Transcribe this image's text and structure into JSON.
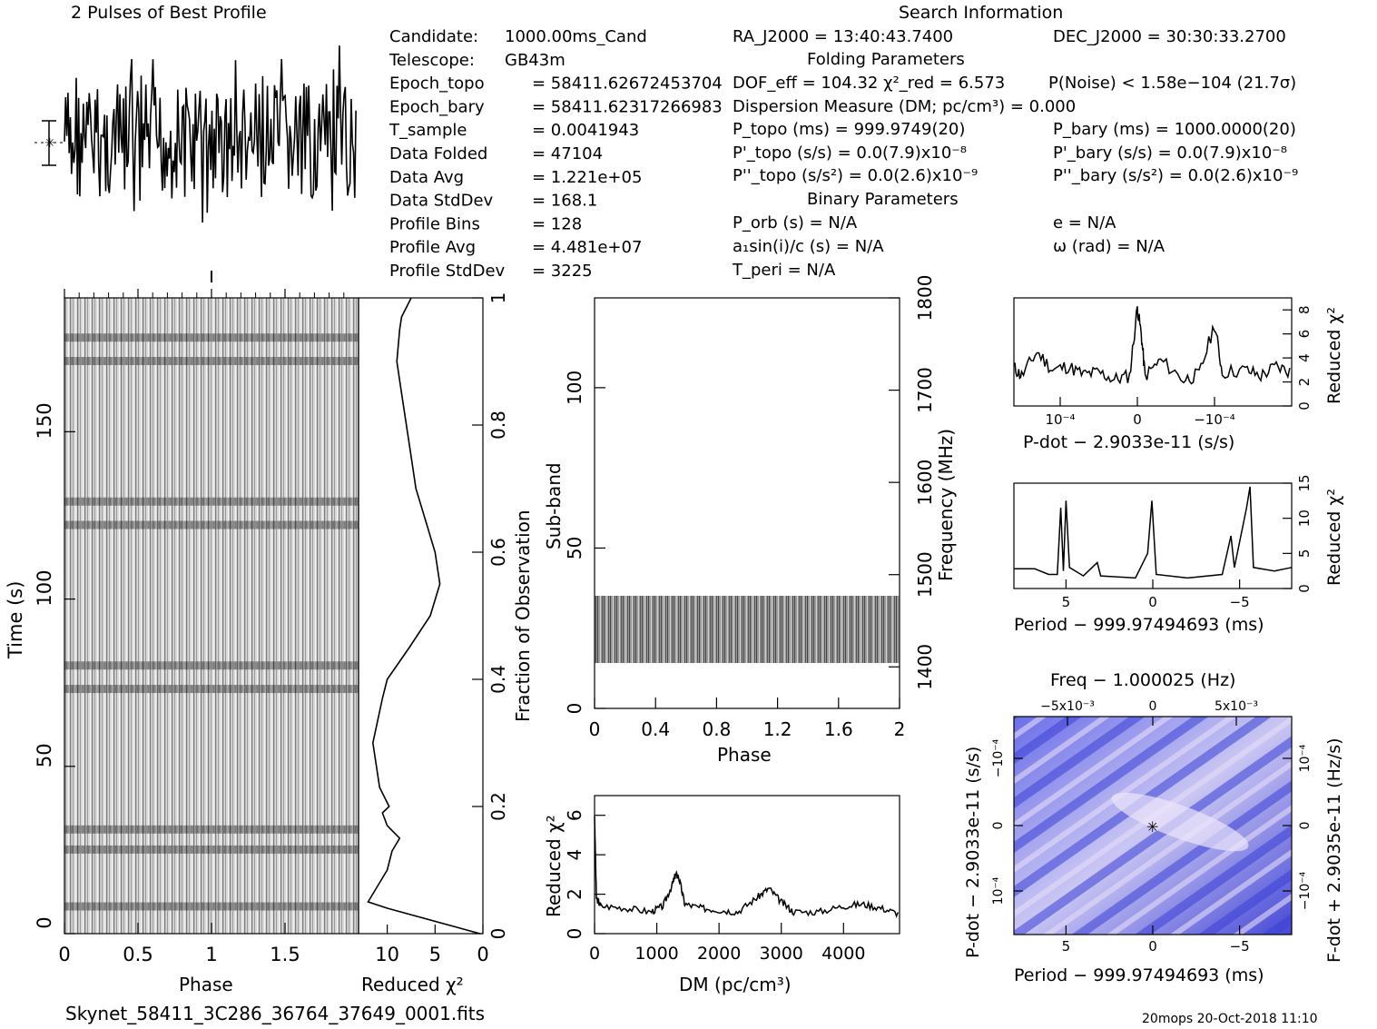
{
  "header": {
    "profile_title": "2 Pulses of Best Profile",
    "search_title": "Search Information",
    "filename": "Skynet_58411_3C286_36764_37649_0001.fits",
    "footer": "20mops 20-Oct-2018 11:10"
  },
  "info_left": [
    {
      "label": "Candidate:",
      "value": "1000.00ms_Cand"
    },
    {
      "label": "Telescope:",
      "value": "GB43m"
    },
    {
      "label": "Epoch_topo",
      "value": "= 58411.62672453704"
    },
    {
      "label": "Epoch_bary",
      "value": "= 58411.62317266983"
    },
    {
      "label": "T_sample",
      "value": "= 0.0041943"
    },
    {
      "label": "Data Folded",
      "value": "= 47104"
    },
    {
      "label": "Data Avg",
      "value": "= 1.221e+05"
    },
    {
      "label": "Data StdDev",
      "value": "= 168.1"
    },
    {
      "label": "Profile Bins",
      "value": "= 128"
    },
    {
      "label": "Profile Avg",
      "value": "= 4.481e+07"
    },
    {
      "label": "Profile StdDev",
      "value": "= 3225"
    }
  ],
  "info_mid": {
    "ra": "RA_J2000 = 13:40:43.7400",
    "folding_title": "Folding Parameters",
    "dof": "DOF_eff = 104.32  χ²_red = 6.573",
    "dm": "Dispersion Measure (DM; pc/cm³) = 0.000",
    "p_topo": "P_topo (ms) = 999.9749(20)",
    "pd_topo": "P'_topo (s/s) = 0.0(7.9)x10⁻⁸",
    "pdd_topo": "P''_topo (s/s²) = 0.0(2.6)x10⁻⁹",
    "binary_title": "Binary Parameters",
    "porb": "P_orb (s) = N/A",
    "a1": "a₁sin(i)/c (s) = N/A",
    "tperi": "T_peri = N/A"
  },
  "info_right": {
    "dec": "DEC_J2000 = 30:30:33.2700",
    "pnoise": "P(Noise) < 1.58e−104  (21.7σ)",
    "p_bary": "P_bary (ms) = 1000.0000(20)",
    "pd_bary": "P'_bary (s/s) = 0.0(7.9)x10⁻⁸",
    "pdd_bary": "P''_bary (s/s²) = 0.0(2.6)x10⁻⁹",
    "e": "e = N/A",
    "omega": "ω (rad) = N/A"
  },
  "labels": {
    "time_ylabel": "Time (s)",
    "phase_xlabel": "Phase",
    "redchi_xlabel": "Reduced χ²",
    "fraction_label": "Fraction of Observation",
    "subband_ylabel": "Sub-band",
    "freq_label": "Frequency (MHz)",
    "phase2_xlabel": "Phase",
    "dm_ylabel": "Reduced χ²",
    "dm_xlabel": "DM (pc/cm³)",
    "pdot_xlabel": "P-dot − 2.9033e-11 (s/s)",
    "pdot_ylabel": "Reduced χ²",
    "period_xlabel": "Period − 999.97494693 (ms)",
    "period_ylabel": "Reduced χ²",
    "freq_top_label": "Freq − 1.000025 (Hz)",
    "pp_ylabel": "P-dot − 2.9033e-11 (s/s)",
    "pp_ylabel_right": "F-dot + 2.9035e-11 (Hz/s)",
    "pp_xlabel": "Period − 999.97494693 (ms)"
  },
  "ticks": {
    "time_y": [
      "0",
      "50",
      "100",
      "150"
    ],
    "phase_x": [
      "0",
      "0.5",
      "1",
      "1.5"
    ],
    "redchi_x": [
      "10",
      "5",
      "0"
    ],
    "fraction_y": [
      "0",
      "0.2",
      "0.4",
      "0.6",
      "0.8",
      "1"
    ],
    "subband_y": [
      "0",
      "50",
      "100"
    ],
    "freq_y": [
      "1400",
      "1500",
      "1600",
      "1700",
      "1800"
    ],
    "phase2_x": [
      "0",
      "0.4",
      "0.8",
      "1.2",
      "1.6",
      "2"
    ],
    "dm_y": [
      "0",
      "2",
      "4",
      "6"
    ],
    "dm_x": [
      "0",
      "1000",
      "2000",
      "3000",
      "4000"
    ],
    "pdot_x": [
      "10⁻⁴",
      "0",
      "−10⁻⁴"
    ],
    "pdot_y": [
      "0",
      "2",
      "4",
      "6",
      "8"
    ],
    "period_x": [
      "5",
      "0",
      "−5"
    ],
    "period_y": [
      "0",
      "5",
      "10",
      "15"
    ],
    "freq_top_x": [
      "−5x10⁻³",
      "0",
      "5x10⁻³"
    ],
    "pp_y": [
      "−10⁻⁴",
      "0",
      "10⁻⁴"
    ],
    "pp_y_right": [
      "10⁻⁴",
      "0",
      "−10⁻⁴"
    ],
    "pp_x": [
      "5",
      "0",
      "−5"
    ]
  },
  "chart_data": [
    {
      "type": "line",
      "title": "2 Pulses of Best Profile",
      "note": "noise-like pulse profile over two rotations"
    },
    {
      "type": "heatmap",
      "xlabel": "Phase",
      "ylabel": "Time (s)",
      "xlim": [
        0,
        2
      ],
      "ylim": [
        0,
        190
      ],
      "dark_bands_time_s": [
        8,
        25,
        31,
        73,
        80,
        122,
        129,
        171,
        178
      ]
    },
    {
      "type": "line",
      "xlabel": "Reduced χ²",
      "ylabel": "Fraction of Observation",
      "xlim": [
        13,
        0
      ],
      "ylim": [
        0,
        1
      ],
      "points": [
        [
          0.3,
          0
        ],
        [
          10,
          0.04
        ],
        [
          12,
          0.05
        ],
        [
          10,
          0.1
        ],
        [
          9.5,
          0.13
        ],
        [
          8.7,
          0.15
        ],
        [
          10,
          0.17
        ],
        [
          10.5,
          0.19
        ],
        [
          9.8,
          0.2
        ],
        [
          10.8,
          0.23
        ],
        [
          11.5,
          0.3
        ],
        [
          10.5,
          0.37
        ],
        [
          10,
          0.4
        ],
        [
          7.7,
          0.45
        ],
        [
          5.5,
          0.5
        ],
        [
          4.5,
          0.55
        ],
        [
          5,
          0.6
        ],
        [
          6,
          0.65
        ],
        [
          7,
          0.7
        ],
        [
          7.5,
          0.75
        ],
        [
          8.5,
          0.85
        ],
        [
          9,
          0.9
        ],
        [
          8.7,
          0.95
        ],
        [
          8.5,
          0.97
        ],
        [
          7.5,
          1
        ]
      ]
    },
    {
      "type": "heatmap",
      "xlabel": "Phase",
      "ylabel": "Sub-band",
      "xlim": [
        0,
        2
      ],
      "ylim": [
        0,
        128
      ],
      "freq_lim_mhz": [
        1350,
        1800
      ],
      "active_subbands": [
        14,
        35
      ]
    },
    {
      "type": "line",
      "xlabel": "DM (pc/cm³)",
      "ylabel": "Reduced χ²",
      "xlim": [
        0,
        4900
      ],
      "ylim": [
        0,
        7
      ],
      "points": [
        [
          0,
          6
        ],
        [
          30,
          1.8
        ],
        [
          100,
          1.4
        ],
        [
          500,
          1.3
        ],
        [
          900,
          1.1
        ],
        [
          1100,
          1.4
        ],
        [
          1250,
          2.5
        ],
        [
          1300,
          3
        ],
        [
          1350,
          2.9
        ],
        [
          1450,
          1.5
        ],
        [
          1700,
          1.3
        ],
        [
          2000,
          1.2
        ],
        [
          2300,
          1.1
        ],
        [
          2600,
          1.8
        ],
        [
          2800,
          2.3
        ],
        [
          3000,
          1.6
        ],
        [
          3200,
          1.1
        ],
        [
          3600,
          1.1
        ],
        [
          4000,
          1.4
        ],
        [
          4300,
          1.5
        ],
        [
          4600,
          1.3
        ],
        [
          4900,
          1
        ]
      ]
    },
    {
      "type": "line",
      "xlabel": "P-dot − 2.9033e-11 (s/s)",
      "ylabel": "Reduced χ²",
      "xlim": [
        0.00016,
        -0.0002
      ],
      "ylim": [
        0,
        9
      ],
      "points": [
        [
          0.00016,
          3.2
        ],
        [
          0.00015,
          2.5
        ],
        [
          0.00013,
          4.5
        ],
        [
          0.00011,
          3
        ],
        [
          9e-05,
          3.3
        ],
        [
          7e-05,
          2.6
        ],
        [
          5e-05,
          2.8
        ],
        [
          3e-05,
          2.2
        ],
        [
          1e-05,
          2.5
        ],
        [
          0,
          8.2
        ],
        [
          -5e-06,
          6
        ],
        [
          -1e-05,
          2.5
        ],
        [
          -3e-05,
          3.8
        ],
        [
          -6e-05,
          2.2
        ],
        [
          -8e-05,
          2.6
        ],
        [
          -0.0001,
          6.8
        ],
        [
          -0.00011,
          2.8
        ],
        [
          -0.00014,
          3
        ],
        [
          -0.00016,
          2.5
        ],
        [
          -0.00018,
          3.3
        ],
        [
          -0.0002,
          2.8
        ]
      ]
    },
    {
      "type": "line",
      "xlabel": "Period − 999.97494693 (ms)",
      "ylabel": "Reduced χ²",
      "xlim": [
        8,
        -8
      ],
      "ylim": [
        0,
        15
      ],
      "points": [
        [
          8,
          2.8
        ],
        [
          6.8,
          2.8
        ],
        [
          6,
          2
        ],
        [
          5.5,
          2
        ],
        [
          5.3,
          11.5
        ],
        [
          5.15,
          2.5
        ],
        [
          5,
          12.5
        ],
        [
          4.8,
          3
        ],
        [
          4,
          1.8
        ],
        [
          3.2,
          3.7
        ],
        [
          3,
          1.8
        ],
        [
          1,
          1.5
        ],
        [
          0.3,
          5
        ],
        [
          0.05,
          12.5
        ],
        [
          -0.2,
          2
        ],
        [
          -2,
          1.5
        ],
        [
          -4,
          2
        ],
        [
          -4.5,
          7.5
        ],
        [
          -4.7,
          3
        ],
        [
          -5.4,
          11.5
        ],
        [
          -5.6,
          14.5
        ],
        [
          -5.8,
          3
        ],
        [
          -7,
          2.5
        ],
        [
          -8,
          3
        ]
      ]
    },
    {
      "type": "heatmap",
      "xlabel": "Period − 999.97494693 (ms)",
      "ylabel": "P-dot − 2.9033e-11 (s/s)",
      "xlim": [
        8,
        -8
      ],
      "ylim": [
        -0.00016,
        0.00016
      ],
      "best_fit": [
        0,
        0
      ]
    }
  ]
}
